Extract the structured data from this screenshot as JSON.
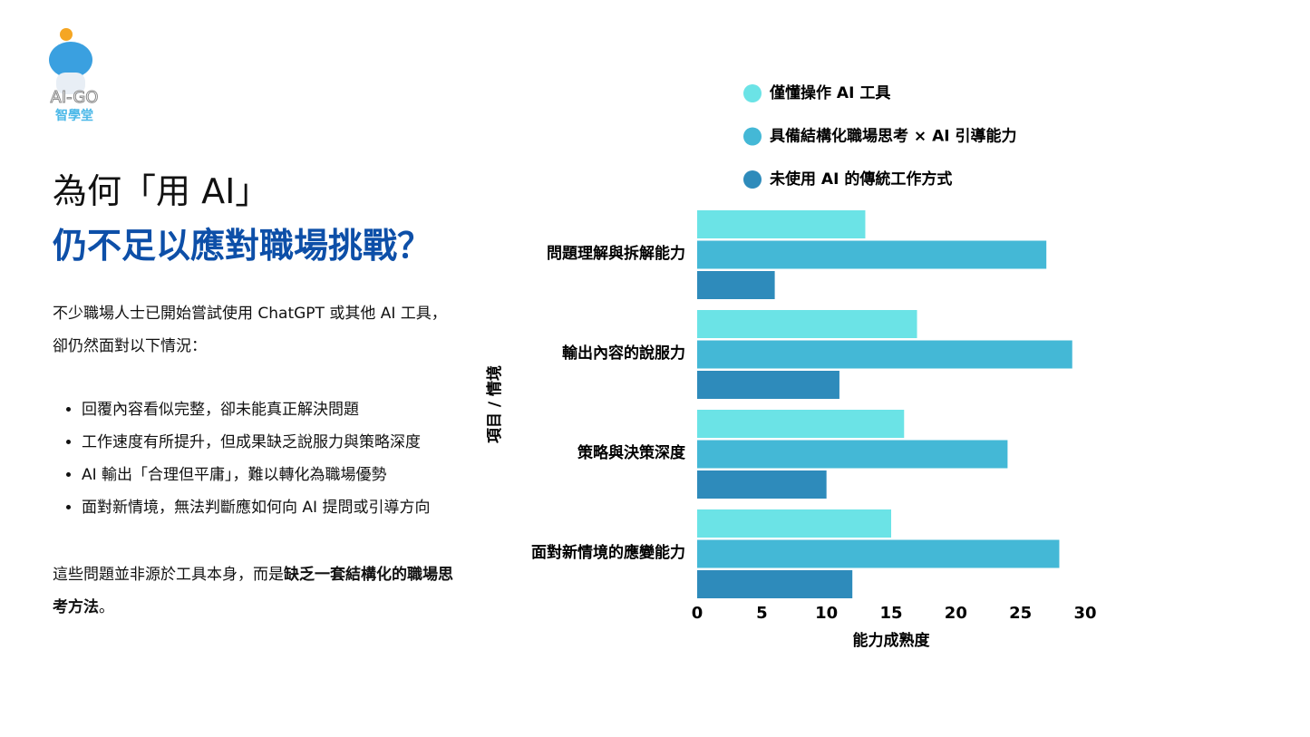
{
  "header": {
    "logo_text": "AI-GO",
    "logo_subtext": "智學堂"
  },
  "title": {
    "line1": "為何「用 AI」",
    "line2": "仍不足以應對職場挑戰？"
  },
  "intro": "不少職場人士已開始嘗試使用 ChatGPT 或其他 AI 工具，卻仍然面對以下情況：",
  "bullets": [
    "回覆內容看似完整，卻未能真正解決問題",
    "工作速度有所提升，但成果缺乏說服力與策略深度",
    "AI 輸出「合理但平庸」，難以轉化為職場優勢",
    "面對新情境，無法判斷應如何向 AI 提問或引導方向"
  ],
  "conclusion": {
    "plain": "這些問題並非源於工具本身，而是",
    "bold": "缺乏一套結構化的職場思考方法",
    "end": "。"
  },
  "chart_data": {
    "type": "hbar",
    "categories": [
      "問題理解與拆解能力",
      "輸出內容的說服力",
      "策略與決策深度",
      "面對新情境的應變能力"
    ],
    "series": [
      {
        "name": "僅懂操作 AI 工具",
        "color": "#6be3e6",
        "values": [
          13,
          17,
          16,
          15
        ]
      },
      {
        "name": "具備結構化職場思考 × AI 引導能力",
        "color": "#44b8d6",
        "values": [
          27,
          29,
          24,
          28
        ]
      },
      {
        "name": "未使用 AI 的傳統工作方式",
        "color": "#2e8bbb",
        "values": [
          6,
          11,
          10,
          12
        ]
      }
    ],
    "xlabel": "能力成熟度",
    "ylabel": "項目 / 情境",
    "xlim": [
      0,
      30
    ],
    "xticks": [
      0,
      5,
      10,
      15,
      20,
      25,
      30
    ],
    "legend": "top"
  }
}
